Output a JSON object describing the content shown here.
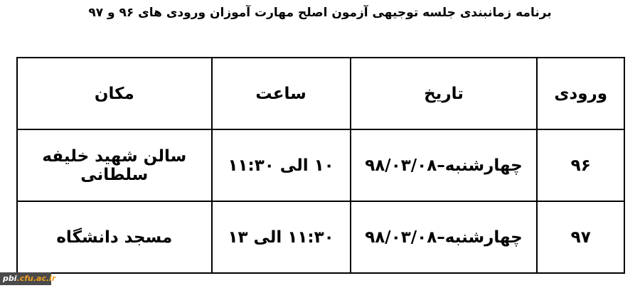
{
  "title": "برنامه زمانبندی جلسه توجیهی آزمون اصلح مهارت آموزان ورودی های ۹۶ و ۹۷",
  "table": {
    "headers": [
      "ورودی",
      "تاریخ",
      "ساعت",
      "مکان"
    ],
    "rows": [
      [
        "۹۶",
        "چهارشنبه–۹۸/۰۳/۰۸",
        "۱۰ الی ۱۱:۳۰",
        "سالن شهید خلیفه سلطانی"
      ],
      [
        "۹۷",
        "چهارشنبه–۹۸/۰۳/۰۸",
        "۱۱:۳۰ الی ۱۳",
        "مسجد دانشگاه"
      ]
    ]
  },
  "watermark": {
    "prefix": "pbi",
    "suffix": ".cfu.ac.ir",
    "accent": "#f0a020"
  }
}
